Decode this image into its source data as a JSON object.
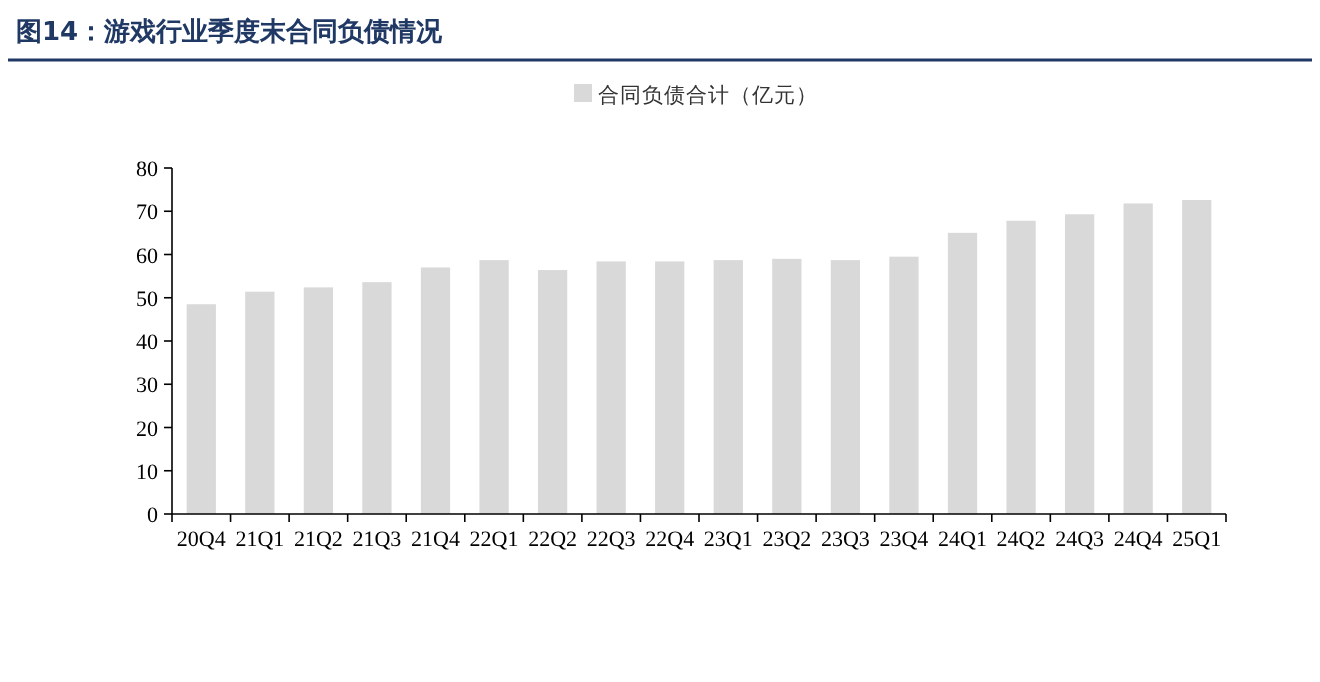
{
  "chart_data": {
    "type": "bar",
    "title": "图14：游戏行业季度末合同负债情况",
    "categories": [
      "20Q4",
      "21Q1",
      "21Q2",
      "21Q3",
      "21Q4",
      "22Q1",
      "22Q2",
      "22Q3",
      "22Q4",
      "23Q1",
      "23Q2",
      "23Q3",
      "23Q4",
      "24Q1",
      "24Q2",
      "24Q3",
      "24Q4",
      "25Q1"
    ],
    "series": [
      {
        "name": "合同负债合计（亿元）",
        "color": "#d9d9d9",
        "values": [
          48.5,
          51.4,
          52.4,
          53.6,
          57.0,
          58.7,
          56.4,
          58.4,
          58.4,
          58.7,
          59.0,
          58.7,
          59.5,
          65.0,
          67.8,
          69.3,
          71.8,
          72.6
        ]
      }
    ],
    "ylim": [
      0,
      80
    ],
    "yticks": [
      0,
      10,
      20,
      30,
      40,
      50,
      60,
      70,
      80
    ],
    "grid": false,
    "legend": "top"
  }
}
